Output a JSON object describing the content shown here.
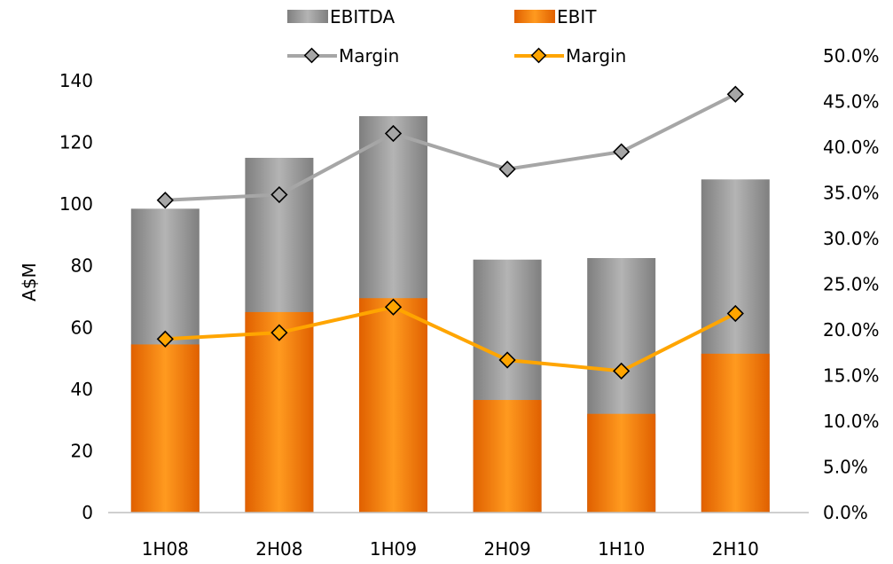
{
  "chart_data": {
    "type": "bar",
    "categories": [
      "1H08",
      "2H08",
      "1H09",
      "2H09",
      "1H10",
      "2H10"
    ],
    "series": [
      {
        "name": "EBITDA",
        "kind": "bar",
        "axis": "left",
        "color": "#9b9b9b",
        "values": [
          98.5,
          115,
          128.5,
          82,
          82.5,
          108
        ]
      },
      {
        "name": "EBIT",
        "kind": "bar",
        "axis": "left",
        "color": "#f07a10",
        "values": [
          54.5,
          65,
          69.5,
          36.5,
          32,
          51.5
        ]
      },
      {
        "name": "Margin",
        "kind": "line",
        "axis": "right",
        "color": "#a6a6a6",
        "marker_fill": "#a6a6a6",
        "values": [
          34.2,
          34.8,
          41.5,
          37.6,
          39.5,
          45.8
        ]
      },
      {
        "name": "Margin",
        "kind": "line",
        "axis": "right",
        "color": "#ffa500",
        "marker_fill": "#ffa500",
        "values": [
          19.0,
          19.7,
          22.5,
          16.7,
          15.5,
          21.8
        ]
      }
    ],
    "ylabel": "A$M",
    "ylim": [
      0,
      140
    ],
    "y_ticks": [
      "0",
      "20",
      "40",
      "60",
      "80",
      "100",
      "120",
      "140"
    ],
    "y2lim": [
      0,
      50
    ],
    "y2_ticks": [
      "0.0%",
      "5.0%",
      "10.0%",
      "15.0%",
      "20.0%",
      "25.0%",
      "30.0%",
      "35.0%",
      "40.0%",
      "45.0%",
      "50.0%"
    ],
    "legend_position": "top",
    "grid": false
  }
}
